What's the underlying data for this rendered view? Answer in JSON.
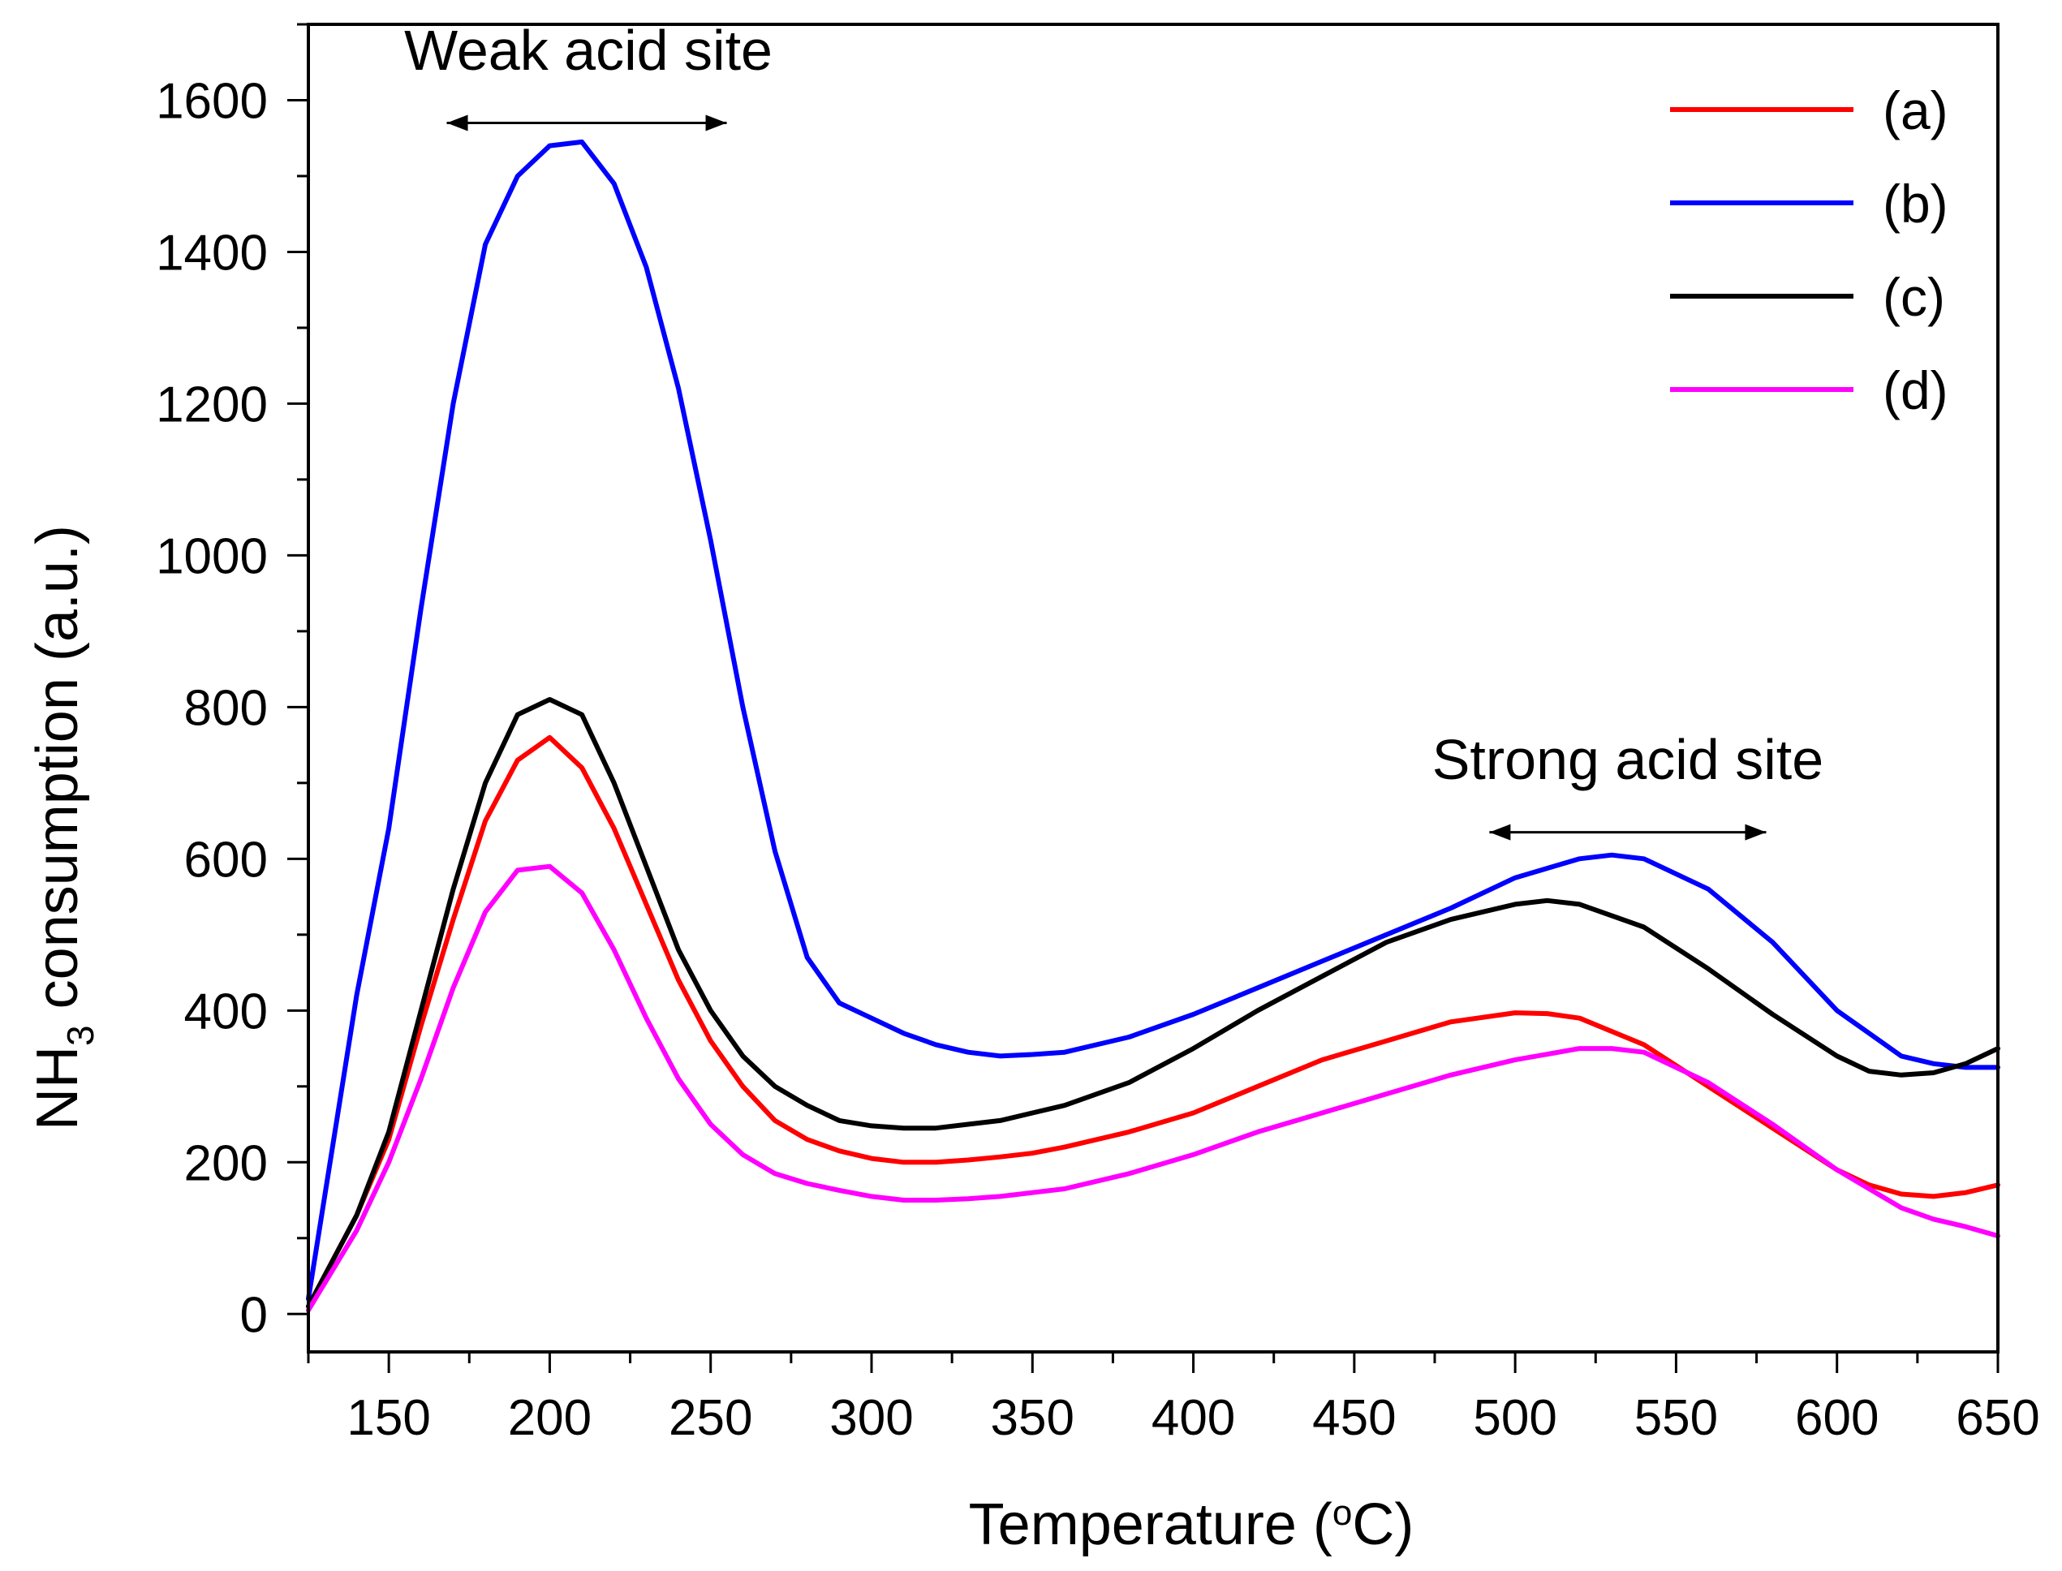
{
  "chart_data": {
    "type": "line",
    "title": "",
    "xlabel": {
      "main": "Temperature (",
      "sup": "o",
      "tail": "C)"
    },
    "ylabel": {
      "main": "NH",
      "sub": "3",
      "tail": " consumption (a.u.)"
    },
    "xlim": [
      125,
      650
    ],
    "ylim": [
      -50,
      1700
    ],
    "xticks": [
      150,
      200,
      250,
      300,
      350,
      400,
      450,
      500,
      550,
      600,
      650
    ],
    "yticks": [
      0,
      200,
      400,
      600,
      800,
      1000,
      1200,
      1400,
      1600
    ],
    "x_minor_step": 25,
    "y_minor_step": 100,
    "legend_position": "top-right",
    "annotations": [
      {
        "text": "Weak acid site",
        "x_range": [
          168,
          255
        ],
        "y": 1570,
        "label_x": 212,
        "label_y": 1640
      },
      {
        "text": "Strong acid site",
        "x_range": [
          492,
          578
        ],
        "y": 635,
        "label_x": 535,
        "label_y": 705
      }
    ],
    "series": [
      {
        "name": "(a)",
        "color": "#ff0000",
        "x": [
          125,
          140,
          150,
          160,
          170,
          180,
          190,
          200,
          210,
          220,
          230,
          240,
          250,
          260,
          270,
          280,
          290,
          300,
          310,
          320,
          330,
          340,
          350,
          360,
          380,
          400,
          420,
          440,
          460,
          480,
          500,
          510,
          520,
          540,
          560,
          580,
          600,
          610,
          620,
          630,
          640,
          650
        ],
        "y": [
          10,
          130,
          230,
          380,
          520,
          650,
          730,
          760,
          720,
          640,
          540,
          440,
          360,
          300,
          255,
          230,
          215,
          205,
          200,
          200,
          203,
          207,
          212,
          220,
          240,
          265,
          300,
          335,
          360,
          385,
          397,
          396,
          390,
          355,
          300,
          245,
          190,
          170,
          158,
          155,
          160,
          170
        ]
      },
      {
        "name": "(b)",
        "color": "#0000ff",
        "x": [
          125,
          140,
          150,
          160,
          170,
          180,
          190,
          200,
          210,
          220,
          230,
          240,
          250,
          260,
          270,
          280,
          290,
          300,
          310,
          320,
          330,
          340,
          350,
          360,
          380,
          400,
          420,
          440,
          460,
          480,
          500,
          520,
          530,
          540,
          560,
          580,
          600,
          620,
          630,
          640,
          650
        ],
        "y": [
          20,
          420,
          640,
          930,
          1200,
          1410,
          1500,
          1540,
          1545,
          1490,
          1380,
          1220,
          1020,
          800,
          610,
          470,
          410,
          390,
          370,
          355,
          345,
          340,
          342,
          345,
          365,
          395,
          430,
          465,
          500,
          535,
          575,
          600,
          605,
          600,
          560,
          490,
          400,
          340,
          330,
          325,
          325
        ]
      },
      {
        "name": "(c)",
        "color": "#000000",
        "x": [
          125,
          140,
          150,
          160,
          170,
          180,
          190,
          200,
          210,
          220,
          230,
          240,
          250,
          260,
          270,
          280,
          290,
          300,
          310,
          320,
          330,
          340,
          350,
          360,
          380,
          400,
          420,
          440,
          460,
          480,
          500,
          510,
          520,
          540,
          560,
          580,
          600,
          610,
          620,
          630,
          640,
          650
        ],
        "y": [
          10,
          130,
          240,
          400,
          560,
          700,
          790,
          810,
          790,
          700,
          590,
          480,
          400,
          340,
          300,
          275,
          255,
          248,
          245,
          245,
          250,
          255,
          265,
          275,
          305,
          350,
          400,
          445,
          490,
          520,
          540,
          545,
          540,
          510,
          455,
          395,
          340,
          320,
          315,
          318,
          330,
          350
        ]
      },
      {
        "name": "(d)",
        "color": "#ff00ff",
        "x": [
          125,
          140,
          150,
          160,
          170,
          180,
          190,
          200,
          210,
          220,
          230,
          240,
          250,
          260,
          270,
          280,
          290,
          300,
          310,
          320,
          330,
          340,
          350,
          360,
          380,
          400,
          420,
          440,
          460,
          480,
          500,
          520,
          530,
          540,
          560,
          580,
          600,
          620,
          630,
          640,
          650
        ],
        "y": [
          5,
          110,
          200,
          310,
          430,
          530,
          585,
          590,
          555,
          480,
          390,
          310,
          250,
          210,
          185,
          172,
          163,
          155,
          150,
          150,
          152,
          155,
          160,
          165,
          185,
          210,
          240,
          265,
          290,
          315,
          335,
          350,
          350,
          345,
          305,
          250,
          190,
          140,
          125,
          115,
          103
        ]
      }
    ]
  }
}
